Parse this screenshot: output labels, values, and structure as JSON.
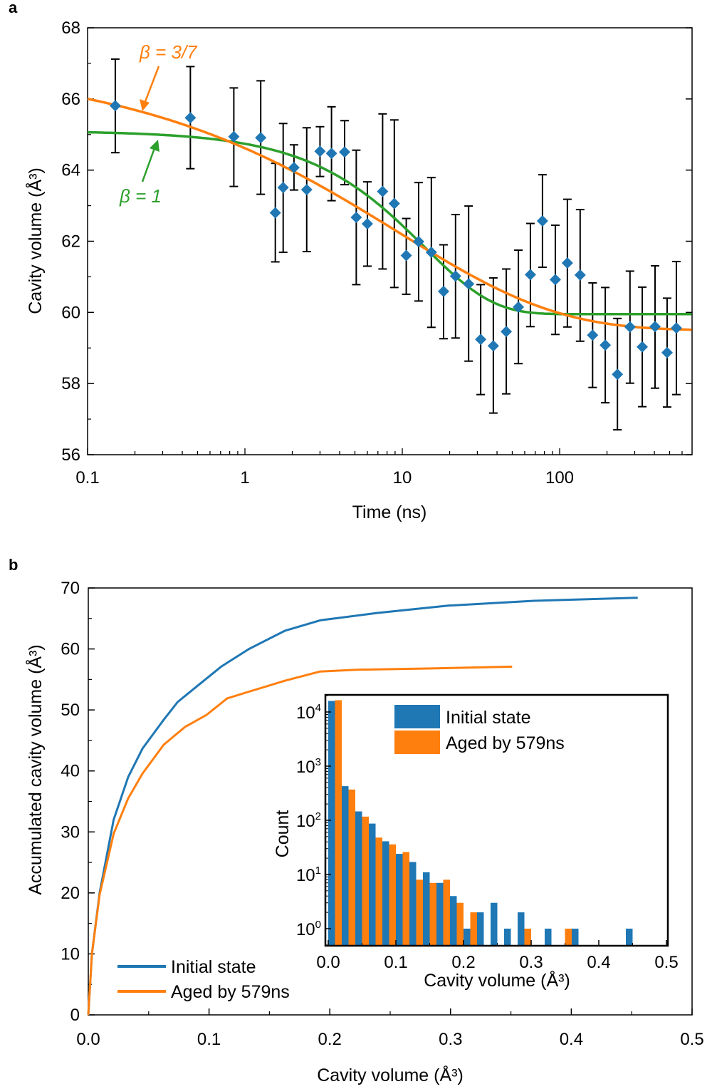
{
  "colors": {
    "data": "#1f77b4",
    "stretched_fit": "#ff7f0e",
    "simple_fit": "#2ca02c",
    "errorbar": "#000000"
  },
  "chart_data": [
    {
      "panel": "a",
      "type": "scatter",
      "xlabel": "Time (ns)",
      "ylabel": "Cavity volume (Å³)",
      "xscale": "log",
      "xlim": [
        0.1,
        690
      ],
      "ylim": [
        56,
        68
      ],
      "xticks": [
        "0.1",
        "1",
        "10",
        "100"
      ],
      "yticks": [
        "56",
        "58",
        "60",
        "62",
        "64",
        "66",
        "68"
      ],
      "marker": "diamond",
      "points": [
        {
          "x": 0.15,
          "y": 65.81,
          "lo": 64.49,
          "hi": 67.12
        },
        {
          "x": 0.45,
          "y": 65.47,
          "lo": 64.04,
          "hi": 66.91
        },
        {
          "x": 0.85,
          "y": 64.94,
          "lo": 63.54,
          "hi": 66.31
        },
        {
          "x": 1.26,
          "y": 64.91,
          "lo": 63.32,
          "hi": 66.51
        },
        {
          "x": 1.56,
          "y": 62.8,
          "lo": 61.42,
          "hi": 64.19
        },
        {
          "x": 1.75,
          "y": 63.51,
          "lo": 61.69,
          "hi": 65.31
        },
        {
          "x": 2.05,
          "y": 64.07,
          "lo": 63.44,
          "hi": 64.71
        },
        {
          "x": 2.47,
          "y": 63.45,
          "lo": 61.71,
          "hi": 65.19
        },
        {
          "x": 3.0,
          "y": 64.53,
          "lo": 63.82,
          "hi": 65.22
        },
        {
          "x": 3.55,
          "y": 64.47,
          "lo": 63.14,
          "hi": 65.78
        },
        {
          "x": 4.3,
          "y": 64.51,
          "lo": 63.59,
          "hi": 65.39
        },
        {
          "x": 5.1,
          "y": 62.67,
          "lo": 60.78,
          "hi": 64.56
        },
        {
          "x": 6.0,
          "y": 62.49,
          "lo": 61.3,
          "hi": 63.67
        },
        {
          "x": 7.5,
          "y": 63.4,
          "lo": 61.22,
          "hi": 65.58
        },
        {
          "x": 8.9,
          "y": 63.06,
          "lo": 60.7,
          "hi": 65.41
        },
        {
          "x": 10.6,
          "y": 61.6,
          "lo": 60.51,
          "hi": 62.64
        },
        {
          "x": 12.7,
          "y": 61.99,
          "lo": 60.32,
          "hi": 63.65
        },
        {
          "x": 15.3,
          "y": 61.69,
          "lo": 59.58,
          "hi": 63.79
        },
        {
          "x": 18.3,
          "y": 60.59,
          "lo": 59.26,
          "hi": 61.9
        },
        {
          "x": 21.8,
          "y": 61.02,
          "lo": 59.28,
          "hi": 62.75
        },
        {
          "x": 26.4,
          "y": 60.8,
          "lo": 58.63,
          "hi": 62.99
        },
        {
          "x": 31.5,
          "y": 59.24,
          "lo": 57.69,
          "hi": 60.78
        },
        {
          "x": 37.9,
          "y": 59.06,
          "lo": 57.17,
          "hi": 60.97
        },
        {
          "x": 45.8,
          "y": 59.46,
          "lo": 57.71,
          "hi": 61.22
        },
        {
          "x": 54.7,
          "y": 60.15,
          "lo": 58.56,
          "hi": 61.75
        },
        {
          "x": 65.2,
          "y": 61.06,
          "lo": 59.6,
          "hi": 62.5
        },
        {
          "x": 77.8,
          "y": 62.57,
          "lo": 61.27,
          "hi": 63.87
        },
        {
          "x": 93.9,
          "y": 60.92,
          "lo": 59.38,
          "hi": 62.45
        },
        {
          "x": 112,
          "y": 61.39,
          "lo": 59.59,
          "hi": 63.18
        },
        {
          "x": 135,
          "y": 61.05,
          "lo": 59.19,
          "hi": 62.89
        },
        {
          "x": 162,
          "y": 59.36,
          "lo": 57.89,
          "hi": 60.83
        },
        {
          "x": 195,
          "y": 59.08,
          "lo": 57.46,
          "hi": 60.7
        },
        {
          "x": 233,
          "y": 58.26,
          "lo": 56.7,
          "hi": 59.83
        },
        {
          "x": 280,
          "y": 59.59,
          "lo": 58.01,
          "hi": 61.16
        },
        {
          "x": 335,
          "y": 59.03,
          "lo": 57.35,
          "hi": 60.71
        },
        {
          "x": 404,
          "y": 59.6,
          "lo": 57.87,
          "hi": 61.31
        },
        {
          "x": 482,
          "y": 58.87,
          "lo": 57.34,
          "hi": 60.4
        },
        {
          "x": 552,
          "y": 59.56,
          "lo": 57.69,
          "hi": 61.43
        }
      ],
      "fits": [
        {
          "label": "β = 3/7",
          "beta": 0.4286,
          "v0": 67.0,
          "vinf": 59.5,
          "tau": 9.4,
          "color": "#ff7f0e"
        },
        {
          "label": "β = 1",
          "beta": 1,
          "v0": 65.1,
          "vinf": 59.95,
          "tau": 13.8,
          "color": "#2ca02c"
        }
      ]
    },
    {
      "panel": "b",
      "type": "line",
      "xlabel": "Cavity volume (Å³)",
      "ylabel": "Accumulated cavity volume (Å³)",
      "xlim": [
        0,
        0.5
      ],
      "ylim": [
        0,
        70
      ],
      "xticks": [
        "0.0",
        "0.1",
        "0.2",
        "0.3",
        "0.4",
        "0.5"
      ],
      "yticks": [
        "0",
        "10",
        "20",
        "30",
        "40",
        "50",
        "60",
        "70"
      ],
      "legend": "bottom-left",
      "series": [
        {
          "name": "Initial state",
          "color": "#1f77b4",
          "x": [
            0,
            0.003,
            0.0094,
            0.021,
            0.033,
            0.045,
            0.0625,
            0.074,
            0.092,
            0.11,
            0.133,
            0.163,
            0.192,
            0.239,
            0.298,
            0.369,
            0.455
          ],
          "y": [
            0,
            10,
            20,
            32,
            39,
            43.7,
            48.4,
            51.3,
            54.2,
            57.1,
            60,
            63,
            64.7,
            65.9,
            67.1,
            67.9,
            68.4
          ]
        },
        {
          "name": "Aged by 579ns",
          "color": "#ff7f0e",
          "x": [
            0,
            0.003,
            0.0094,
            0.021,
            0.033,
            0.045,
            0.0625,
            0.08,
            0.098,
            0.115,
            0.133,
            0.163,
            0.192,
            0.222,
            0.281,
            0.351
          ],
          "y": [
            0,
            10,
            19.7,
            29.7,
            35.5,
            39.6,
            44.3,
            47.2,
            49.2,
            51.9,
            53,
            54.8,
            56.3,
            56.6,
            56.8,
            57.1
          ]
        }
      ]
    },
    {
      "panel": "b-inset",
      "type": "bar",
      "xlabel": "Cavity volume (Å³)",
      "ylabel": "Count",
      "yscale": "log",
      "xlim": [
        0,
        0.5
      ],
      "ylim": [
        0.5,
        23000
      ],
      "xticks": [
        "0.0",
        "0.1",
        "0.2",
        "0.3",
        "0.4",
        "0.5"
      ],
      "yticks": [
        "10^0",
        "10^1",
        "10^2",
        "10^3",
        "10^4"
      ],
      "legend": "top-right",
      "bin_width": 0.02,
      "bin_starts": [
        0,
        0.02,
        0.04,
        0.06,
        0.08,
        0.1,
        0.12,
        0.14,
        0.16,
        0.18,
        0.2,
        0.22,
        0.24,
        0.26,
        0.28,
        0.3,
        0.32,
        0.34,
        0.36,
        0.38,
        0.4,
        0.42,
        0.44
      ],
      "series": [
        {
          "name": "Initial state",
          "color": "#1f77b4",
          "values": [
            16000,
            427,
            146,
            87,
            41,
            24,
            17,
            11,
            7,
            4,
            1,
            2,
            3,
            1,
            2,
            0,
            1,
            0,
            1,
            0,
            0,
            0,
            1
          ]
        },
        {
          "name": "Aged by 579ns",
          "color": "#ff7f0e",
          "values": [
            16500,
            370,
            117,
            48,
            36,
            26,
            8,
            7,
            8,
            3,
            2,
            0,
            0,
            0,
            1,
            0,
            0,
            1,
            0,
            0,
            0,
            0,
            0
          ]
        }
      ]
    }
  ]
}
